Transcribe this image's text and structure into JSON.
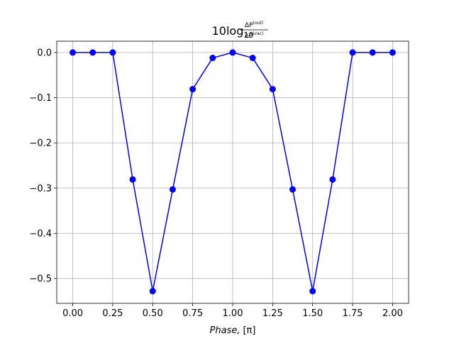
{
  "chart_data": {
    "type": "line",
    "title": {
      "prefix": "10log",
      "subscript": "10",
      "numerator": "ΔP",
      "numerator_sup": "(out)",
      "denominator": "ΔP",
      "denominator_sup": "(vac)"
    },
    "xlabel": {
      "italic_part": "Phase,",
      "bracket_part": "[π]"
    },
    "ylabel": "",
    "x": [
      0.0,
      0.125,
      0.25,
      0.375,
      0.5,
      0.625,
      0.75,
      0.875,
      1.0,
      1.125,
      1.25,
      1.375,
      1.5,
      1.625,
      1.75,
      1.875,
      2.0
    ],
    "series": [
      {
        "values": [
          0.0,
          0.0,
          0.0,
          -0.281,
          -0.528,
          -0.303,
          -0.081,
          -0.012,
          0.0,
          -0.012,
          -0.081,
          -0.303,
          -0.528,
          -0.281,
          0.0,
          0.0,
          0.0
        ],
        "color": "#0000ff",
        "marker": "circle"
      }
    ],
    "xlim": [
      -0.1,
      2.1
    ],
    "ylim": [
      -0.555,
      0.025
    ],
    "xticks": [
      0.0,
      0.25,
      0.5,
      0.75,
      1.0,
      1.25,
      1.5,
      1.75,
      2.0
    ],
    "xtick_labels": [
      "0.00",
      "0.25",
      "0.50",
      "0.75",
      "1.00",
      "1.25",
      "1.50",
      "1.75",
      "2.00"
    ],
    "yticks": [
      0.0,
      -0.1,
      -0.2,
      -0.3,
      -0.4,
      -0.5
    ],
    "ytick_labels": [
      "0.0",
      "−0.1",
      "−0.2",
      "−0.3",
      "−0.4",
      "−0.5"
    ],
    "grid": true,
    "legend": "none",
    "colors": {
      "line": "#0000ff",
      "grid": "#b0b0b0",
      "axes": "#000000"
    }
  }
}
